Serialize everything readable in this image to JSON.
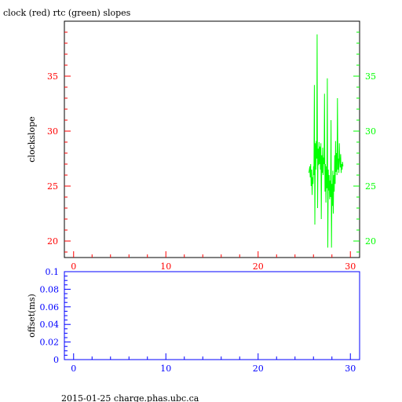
{
  "chart_data": [
    {
      "type": "line",
      "title": "clock (red) rtc (green) slopes",
      "ylabel": "clockslope",
      "xlabel": "",
      "xlim": [
        -1,
        31
      ],
      "ylim": [
        18.5,
        40
      ],
      "x_ticks": [
        "0",
        "10",
        "20",
        "30"
      ],
      "y_ticks_left": [
        "20",
        "25",
        "30",
        "35"
      ],
      "y_ticks_right": [
        "20",
        "25",
        "30",
        "35"
      ],
      "grid": false,
      "series": [
        {
          "name": "rtc",
          "color": "#00ff00",
          "x": [
            25.5,
            25.6,
            25.65,
            25.7,
            25.75,
            25.8,
            25.85,
            25.9,
            25.95,
            26.0,
            26.05,
            26.1,
            26.15,
            26.2,
            26.25,
            26.3,
            26.35,
            26.4,
            26.45,
            26.5,
            26.55,
            26.6,
            26.65,
            26.7,
            26.75,
            26.8,
            26.85,
            26.9,
            26.95,
            27.0,
            27.05,
            27.1,
            27.15,
            27.2,
            27.25,
            27.3,
            27.35,
            27.4,
            27.45,
            27.5,
            27.55,
            27.6,
            27.65,
            27.7,
            27.75,
            27.8,
            27.85,
            27.9,
            27.95,
            28.0,
            28.05,
            28.1,
            28.15,
            28.2,
            28.25,
            28.3,
            28.35,
            28.4,
            28.45,
            28.5,
            28.55,
            28.6,
            28.65,
            28.7,
            28.75,
            28.8,
            28.85,
            28.9,
            28.95,
            29.0,
            29.05,
            29.1,
            29.15,
            29.2
          ],
          "y": [
            26.2,
            26.8,
            25.8,
            27.0,
            25.0,
            26.5,
            24.2,
            25.8,
            25.2,
            26.8,
            26.0,
            34.2,
            21.5,
            28.9,
            26.5,
            29.1,
            27.5,
            38.8,
            23.0,
            28.4,
            26.9,
            29.0,
            27.0,
            28.6,
            26.5,
            28.9,
            22.0,
            27.8,
            26.2,
            28.5,
            26.0,
            27.6,
            27.0,
            33.4,
            24.5,
            27.0,
            23.5,
            26.8,
            24.8,
            34.8,
            19.4,
            26.5,
            24.6,
            26.0,
            23.8,
            25.5,
            24.0,
            31.0,
            19.4,
            25.2,
            23.2,
            26.4,
            22.5,
            26.0,
            24.5,
            27.8,
            25.2,
            29.1,
            26.3,
            28.0,
            26.0,
            33.0,
            26.5,
            27.5,
            26.2,
            28.9,
            27.6,
            26.7,
            27.9,
            26.2,
            27.0,
            26.5,
            27.2,
            26.8
          ]
        }
      ]
    },
    {
      "type": "line",
      "title": "",
      "ylabel": "offset(ms)",
      "xlabel": "",
      "xlim": [
        -1,
        31
      ],
      "ylim": [
        0,
        0.1
      ],
      "x_ticks": [
        "0",
        "10",
        "20",
        "30"
      ],
      "y_ticks": [
        "0",
        "0.02",
        "0.04",
        "0.06",
        "0.08",
        "0.1"
      ],
      "grid": false,
      "series": []
    }
  ],
  "footer": {
    "text": "2015-01-25 charge.phas.ubc.ca"
  },
  "colors": {
    "clock_axis": "#ff0000",
    "rtc_axis": "#00ff00",
    "offset_axis": "#0000ff",
    "frame": "#000000"
  }
}
